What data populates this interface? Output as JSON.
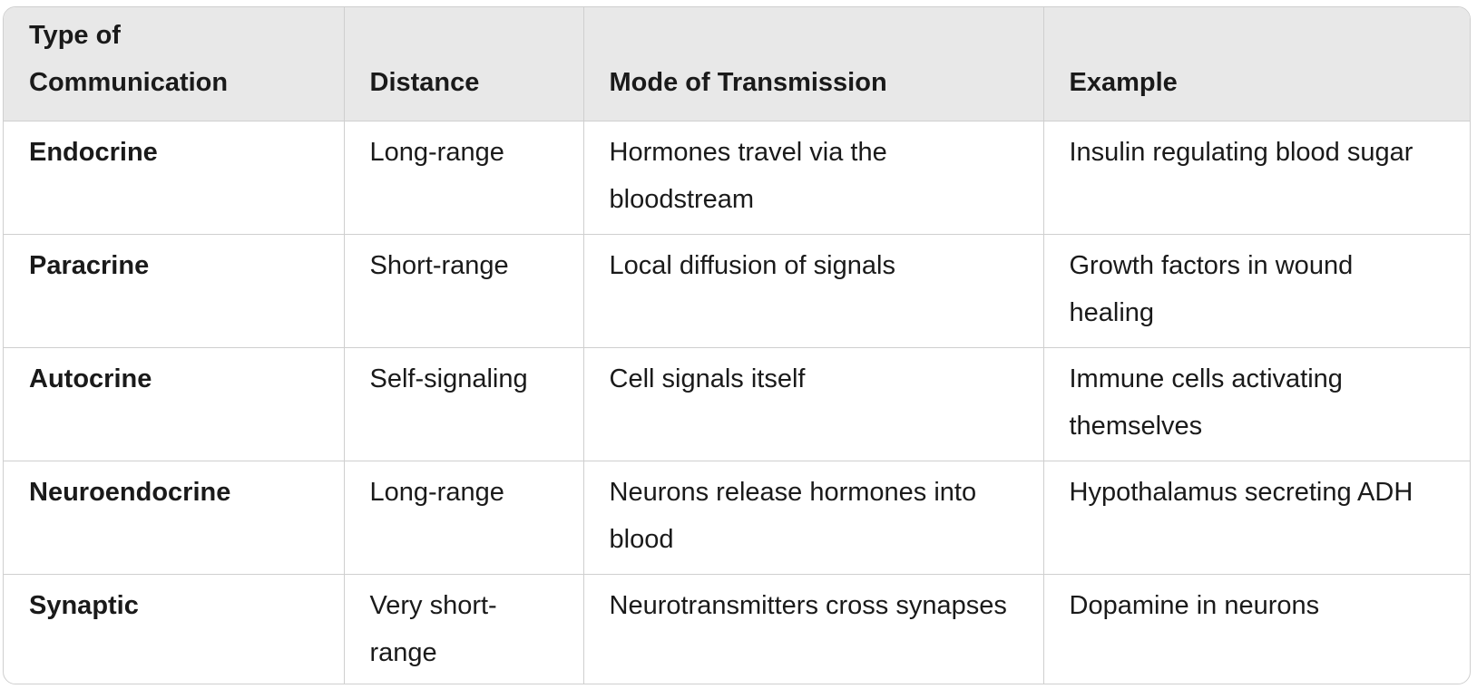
{
  "table": {
    "headers": [
      "Type of Communication",
      "Distance",
      "Mode of Transmission",
      "Example"
    ],
    "rows": [
      [
        "Endocrine",
        "Long-range",
        "Hormones travel via the bloodstream",
        "Insulin regulating blood sugar"
      ],
      [
        "Paracrine",
        "Short-range",
        "Local diffusion of signals",
        "Growth factors in wound healing"
      ],
      [
        "Autocrine",
        "Self-signaling",
        "Cell signals itself",
        "Immune cells activating themselves"
      ],
      [
        "Neuroendocrine",
        "Long-range",
        "Neurons release hormones into blood",
        "Hypothalamus secreting ADH"
      ],
      [
        "Synaptic",
        "Very short-range",
        "Neurotransmitters cross synapses",
        "Dopamine in neurons"
      ]
    ]
  }
}
